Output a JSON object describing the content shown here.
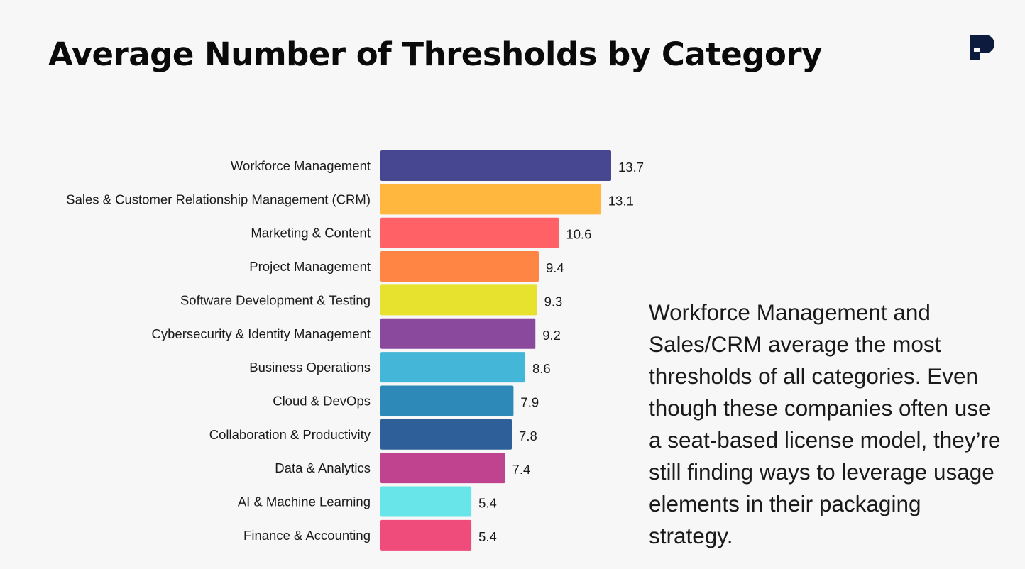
{
  "title": "Average Number of Thresholds by Category",
  "logo_icon": "p-brand-icon",
  "body_text": "Workforce Management and Sales/CRM average the most thresholds of all categories. Even though these companies often use a seat-based license model, they’re still finding ways to leverage usage elements in their packaging strategy.",
  "chart_data": {
    "type": "bar",
    "orientation": "horizontal",
    "title": "Average Number of Thresholds by Category",
    "xlabel": "",
    "ylabel": "",
    "grid": false,
    "xlim": [
      0,
      13.7
    ],
    "categories": [
      "Workforce Management",
      "Sales & Customer Relationship Management (CRM)",
      "Marketing & Content",
      "Project Management",
      "Software Development & Testing",
      "Cybersecurity & Identity Management",
      "Business Operations",
      "Cloud & DevOps",
      "Collaboration & Productivity",
      "Data & Analytics",
      "AI & Machine Learning",
      "Finance & Accounting"
    ],
    "values": [
      13.7,
      13.1,
      10.6,
      9.4,
      9.3,
      9.2,
      8.6,
      7.9,
      7.8,
      7.4,
      5.4,
      5.4
    ],
    "value_labels": [
      "13.7",
      "13.1",
      "10.6",
      "9.4",
      "9.3",
      "9.2",
      "8.6",
      "7.9",
      "7.8",
      "7.4",
      "5.4",
      "5.4"
    ],
    "colors": [
      "#474690",
      "#ffb73e",
      "#ff6167",
      "#ff8545",
      "#e6e22d",
      "#8a499c",
      "#44b6d7",
      "#2d8ab8",
      "#2e5f99",
      "#bf438e",
      "#68e5e8",
      "#ef4b7b"
    ]
  }
}
